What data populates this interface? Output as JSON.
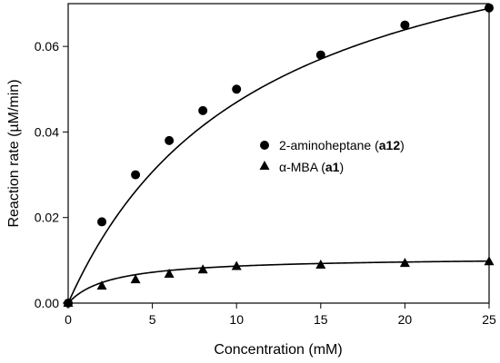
{
  "chart_data": {
    "type": "scatter",
    "xlabel": "Concentration (mM)",
    "ylabel": "Reaction rate (µM/min)",
    "xlim": [
      0,
      25
    ],
    "ylim": [
      0,
      0.07
    ],
    "x_ticks": [
      "0",
      "5",
      "10",
      "15",
      "20",
      "25"
    ],
    "y_ticks": [
      "0.00",
      "0.02",
      "0.04",
      "0.06"
    ],
    "grid": false,
    "legend_position": "center-right",
    "series": [
      {
        "marker": "circle",
        "legend_prefix": "2-aminoheptane (",
        "legend_bold": "a12",
        "legend_suffix": ")",
        "x": [
          0,
          2,
          4,
          6,
          8,
          10,
          15,
          20,
          25
        ],
        "y": [
          0,
          0.019,
          0.03,
          0.038,
          0.045,
          0.05,
          0.058,
          0.065,
          0.069
        ],
        "fit": {
          "vmax": 0.1,
          "km": 11.3
        }
      },
      {
        "marker": "triangle",
        "legend_prefix": "α-MBA (",
        "legend_bold": "a1",
        "legend_suffix": ")",
        "x": [
          0,
          2,
          4,
          6,
          8,
          10,
          15,
          20,
          25
        ],
        "y": [
          0,
          0.004,
          0.0055,
          0.0068,
          0.0078,
          0.0086,
          0.0089,
          0.0093,
          0.0097
        ],
        "fit": {
          "vmax": 0.0108,
          "km": 2.5
        }
      }
    ]
  }
}
